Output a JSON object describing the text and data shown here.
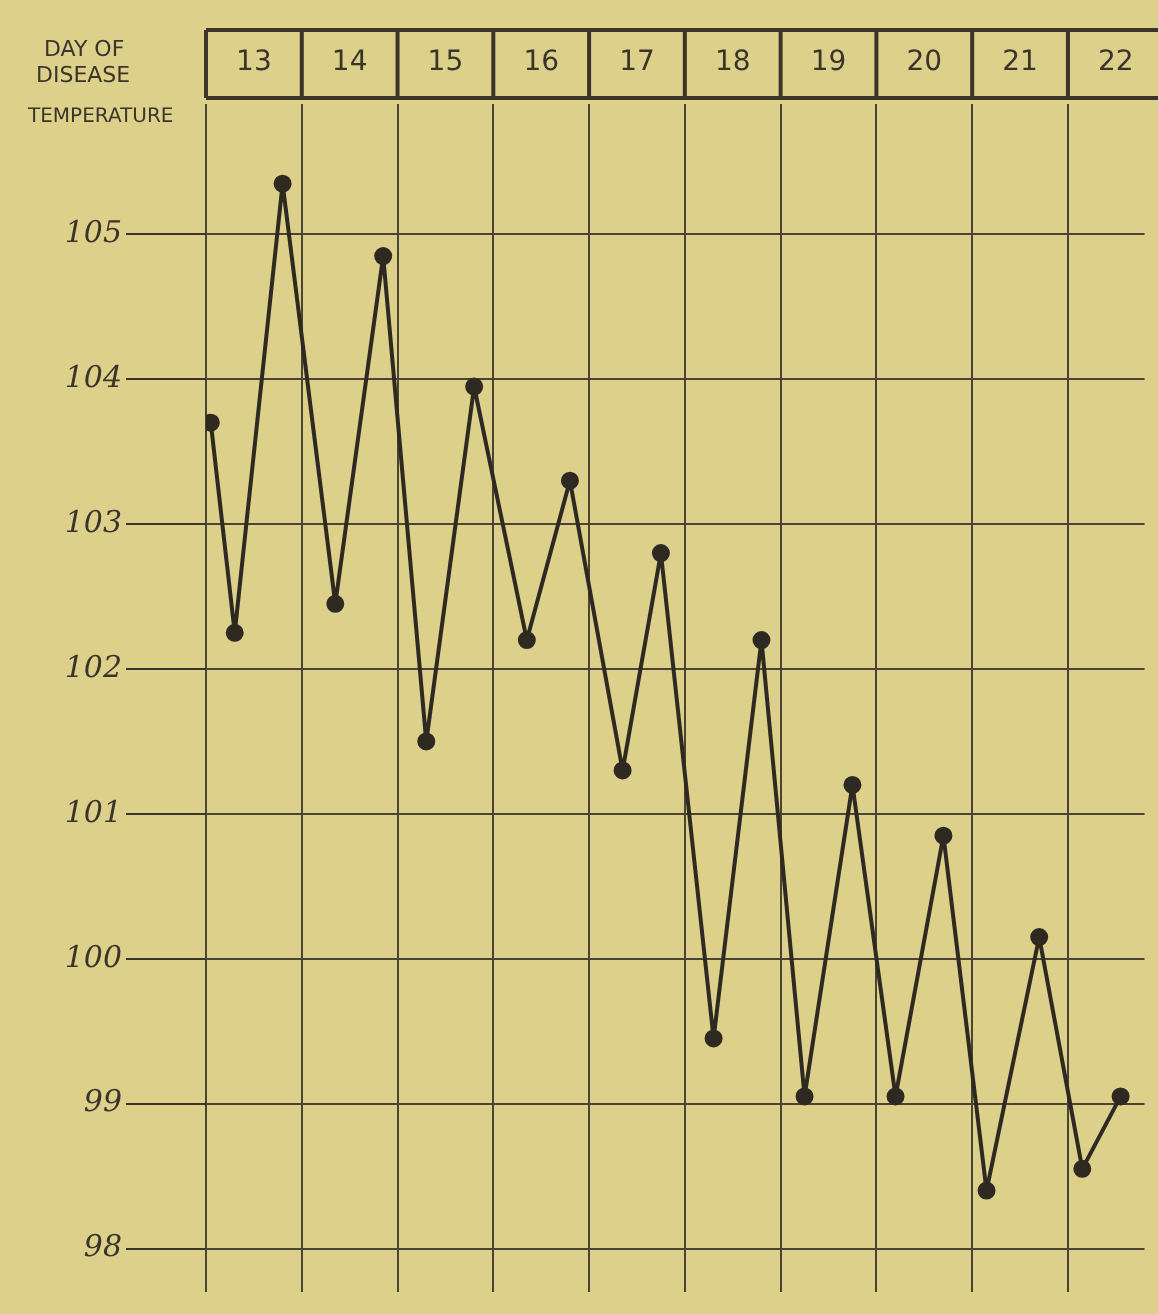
{
  "chart_data": {
    "type": "line",
    "xlabel": "DAY OF DISEASE",
    "ylabel": "TEMPERATURE",
    "x": [
      12.55,
      12.8,
      13.3,
      13.85,
      14.35,
      14.8,
      15.3,
      15.85,
      16.3,
      16.85,
      17.25,
      17.8,
      18.3,
      18.75,
      19.25,
      19.7,
      20.2,
      20.65,
      21.2,
      21.65,
      22.05
    ],
    "values": [
      103.7,
      102.25,
      105.35,
      102.45,
      104.85,
      101.5,
      103.95,
      102.2,
      103.3,
      101.3,
      102.8,
      99.45,
      102.2,
      99.05,
      101.2,
      99.05,
      100.85,
      98.4,
      100.15,
      98.55,
      99.05
    ],
    "color": "#2e2a22",
    "marker": "circle",
    "line_style": "solid",
    "xlim": [
      12.5,
      22.3
    ],
    "xticks": [
      {
        "value": 12.5,
        "label": null
      },
      13,
      {
        "value": 13.5,
        "label": null
      },
      14,
      {
        "value": 14.5,
        "label": null
      },
      15,
      {
        "value": 15.5,
        "label": null
      },
      16,
      {
        "value": 16.5,
        "label": null
      },
      17,
      {
        "value": 17.5,
        "label": null
      },
      18,
      {
        "value": 18.5,
        "label": null
      },
      19,
      {
        "value": 19.5,
        "label": null
      },
      20,
      {
        "value": 20.5,
        "label": null
      },
      21,
      {
        "value": 21.5,
        "label": null
      },
      22
    ],
    "ylim": [
      97.7,
      105.9
    ],
    "yticks": [
      98,
      99,
      100,
      101,
      102,
      103,
      104,
      105
    ],
    "grid": true,
    "legend": false
  }
}
